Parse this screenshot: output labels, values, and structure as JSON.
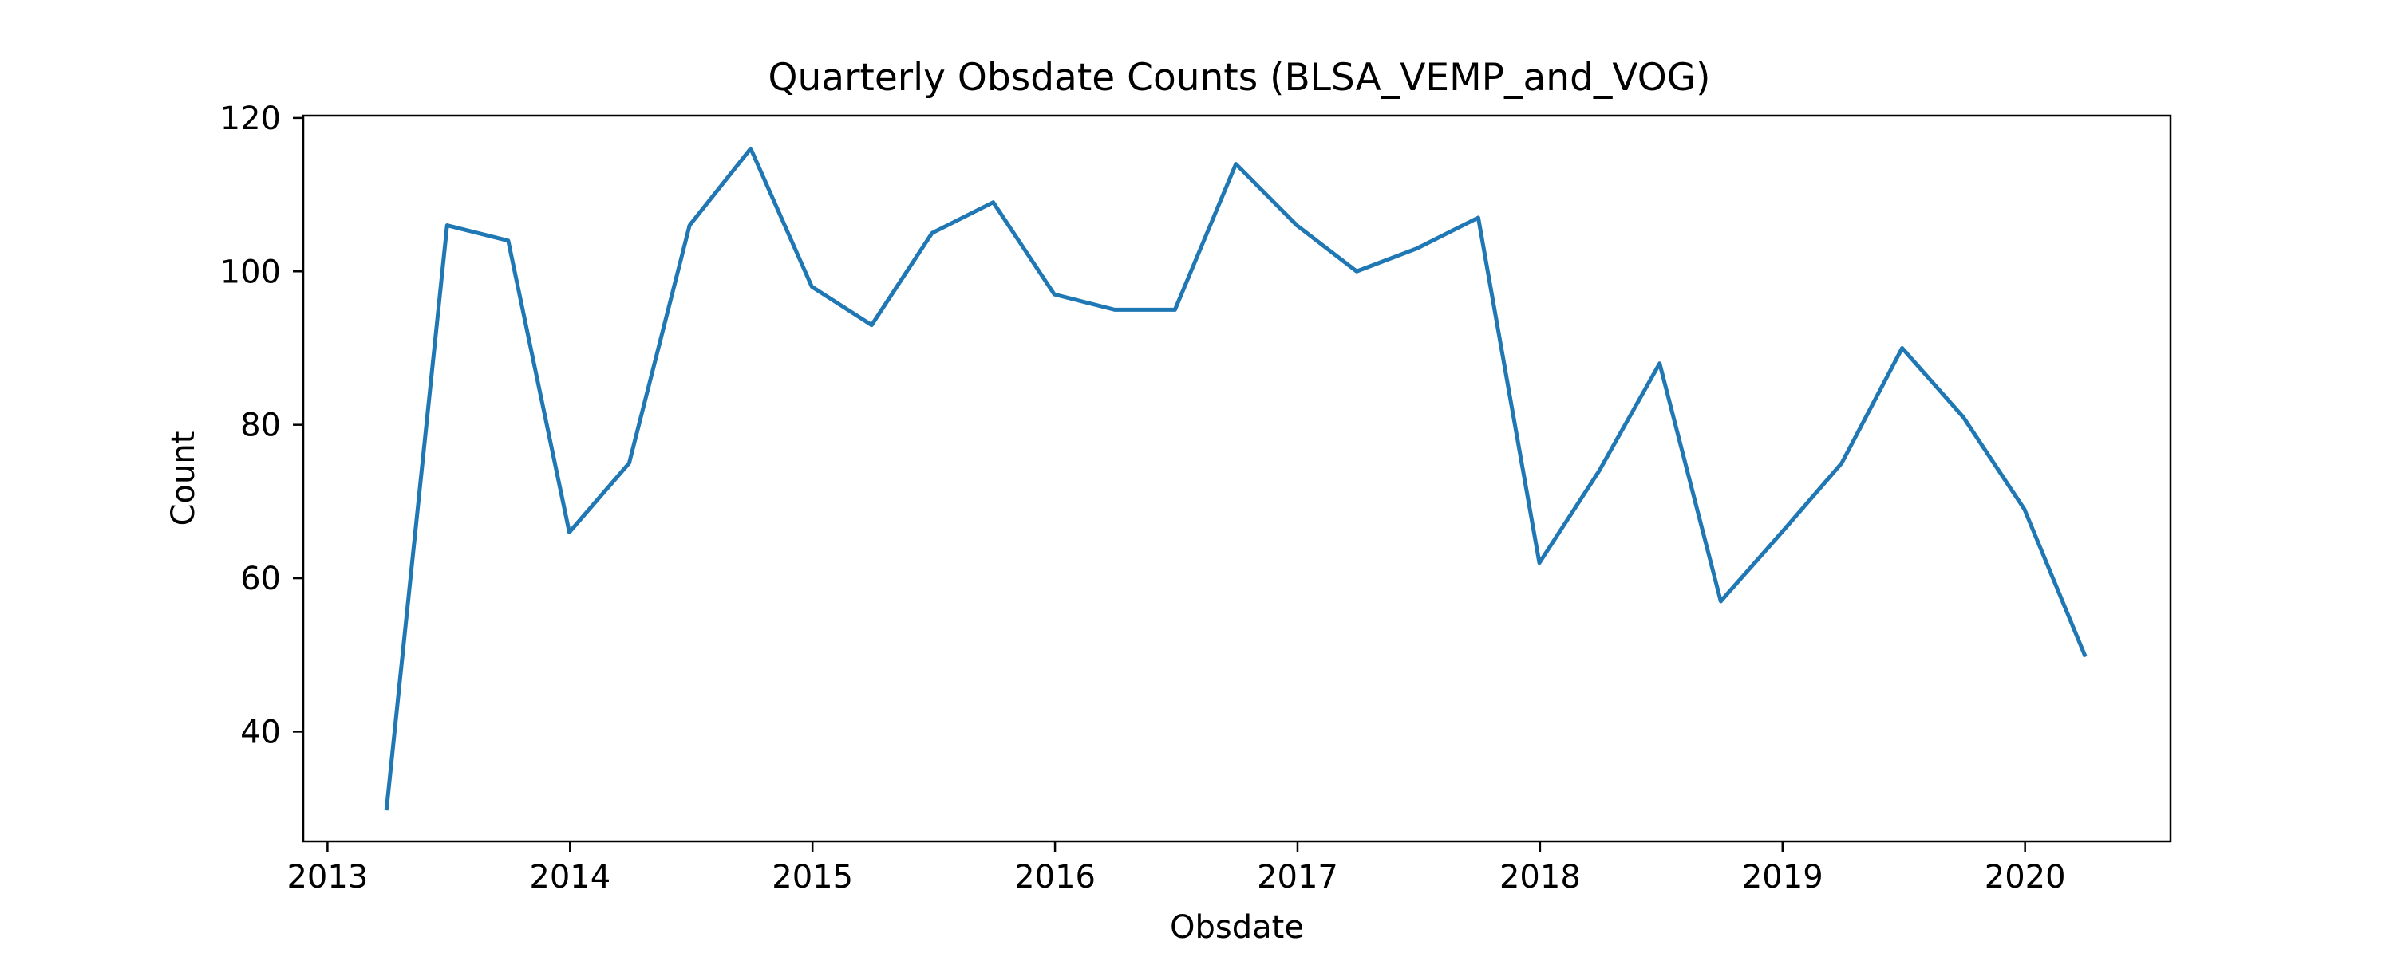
{
  "chart_data": {
    "type": "line",
    "title": "Quarterly Obsdate Counts (BLSA_VEMP_and_VOG)",
    "xlabel": "Obsdate",
    "ylabel": "Count",
    "xlim": [
      2012.9,
      2020.6
    ],
    "ylim": [
      25.7,
      120.3
    ],
    "x_ticks": [
      {
        "value": 2013,
        "label": "2013"
      },
      {
        "value": 2014,
        "label": "2014"
      },
      {
        "value": 2015,
        "label": "2015"
      },
      {
        "value": 2016,
        "label": "2016"
      },
      {
        "value": 2017,
        "label": "2017"
      },
      {
        "value": 2018,
        "label": "2018"
      },
      {
        "value": 2019,
        "label": "2019"
      },
      {
        "value": 2020,
        "label": "2020"
      }
    ],
    "y_ticks": [
      {
        "value": 40,
        "label": "40"
      },
      {
        "value": 60,
        "label": "60"
      },
      {
        "value": 80,
        "label": "80"
      },
      {
        "value": 100,
        "label": "100"
      },
      {
        "value": 120,
        "label": "120"
      }
    ],
    "grid": false,
    "legend": "none",
    "series": [
      {
        "color": "#1f77b4",
        "x": [
          "2013-03-31",
          "2013-06-30",
          "2013-09-30",
          "2013-12-31",
          "2014-03-31",
          "2014-06-30",
          "2014-09-30",
          "2014-12-31",
          "2015-03-31",
          "2015-06-30",
          "2015-09-30",
          "2015-12-31",
          "2016-03-31",
          "2016-06-30",
          "2016-09-30",
          "2016-12-31",
          "2017-03-31",
          "2017-06-30",
          "2017-09-30",
          "2017-12-31",
          "2018-03-31",
          "2018-06-30",
          "2018-09-30",
          "2018-12-31",
          "2019-03-31",
          "2019-06-30",
          "2019-09-30",
          "2019-12-31",
          "2020-03-31"
        ],
        "values": [
          30,
          106,
          104,
          66,
          75,
          106,
          116,
          98,
          93,
          105,
          109,
          97,
          95,
          95,
          114,
          106,
          100,
          103,
          107,
          62,
          74,
          88,
          57,
          66,
          75,
          90,
          81,
          69,
          50
        ]
      }
    ]
  }
}
